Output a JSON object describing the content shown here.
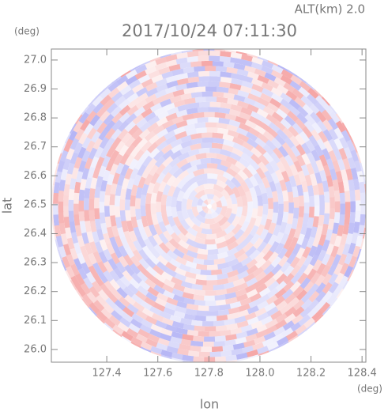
{
  "chart_data": {
    "type": "ppi",
    "title": "2017/10/24 07:11:30",
    "subtitle": "ALT(km) 2.0",
    "xlabel": "lon",
    "ylabel": "lat",
    "xunit": "(deg)",
    "yunit": "(deg)",
    "xlim": [
      127.183,
      128.415
    ],
    "ylim": [
      25.956,
      27.038
    ],
    "xticks": [
      127.4,
      127.6,
      127.8,
      {
        "value": 128,
        "label": "128.0"
      },
      128.2,
      128.4
    ],
    "yticks": [
      {
        "value": 26,
        "label": "26.0"
      },
      26.1,
      26.2,
      26.3,
      26.4,
      26.5,
      26.6,
      26.7,
      26.8,
      26.9,
      {
        "value": 27,
        "label": "27.0"
      }
    ],
    "colors": {
      "positive": "#f5a5a5",
      "negative": "#b4b4f5",
      "frame": "#888888",
      "text": "#777777"
    }
  }
}
